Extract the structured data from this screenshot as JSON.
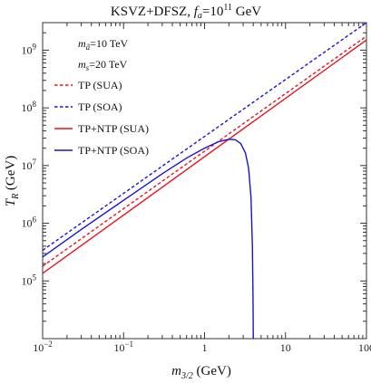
{
  "chart_data": {
    "type": "line",
    "title": "KSVZ+DFSZ, f_a=10^11 GeV",
    "title_parts": {
      "main": "KSVZ+DFSZ, ",
      "fa": "f",
      "fa_sub": "a",
      "eq": "=10",
      "exp": "11",
      "unit": " GeV"
    },
    "xlabel": {
      "m": "m",
      "sub": "3/2",
      "unit": " (GeV)"
    },
    "ylabel": {
      "t": "T",
      "sub": "R",
      "unit": " (GeV)"
    },
    "xscale": "log",
    "yscale": "log",
    "xlim": [
      0.01,
      100
    ],
    "ylim": [
      10000,
      3000000000
    ],
    "x_ticks": [
      {
        "value": 0.01,
        "label": "10",
        "exp": "−2"
      },
      {
        "value": 0.1,
        "label": "10",
        "exp": "−1"
      },
      {
        "value": 1,
        "label": "1",
        "exp": ""
      },
      {
        "value": 10,
        "label": "10",
        "exp": ""
      },
      {
        "value": 100,
        "label": "100",
        "exp": ""
      }
    ],
    "y_ticks": [
      {
        "value": 100000,
        "label": "10",
        "exp": "5"
      },
      {
        "value": 1000000,
        "label": "10",
        "exp": "6"
      },
      {
        "value": 10000000,
        "label": "10",
        "exp": "7"
      },
      {
        "value": 100000000,
        "label": "10",
        "exp": "8"
      },
      {
        "value": 1000000000,
        "label": "10",
        "exp": "9"
      }
    ],
    "annotations": [
      {
        "id": "ma",
        "sym": "m",
        "sub": "ã",
        "text": "=10 TeV"
      },
      {
        "id": "ms",
        "sym": "m",
        "sub": "s",
        "text": "=20 TeV"
      }
    ],
    "legend_position": "top-left",
    "series": [
      {
        "name": "TP (SUA)",
        "color": "#e8141e",
        "dash": true,
        "x": [
          0.01,
          100
        ],
        "y": [
          180000,
          1750000000
        ]
      },
      {
        "name": "TP (SOA)",
        "color": "#1a12d6",
        "dash": true,
        "x": [
          0.01,
          100
        ],
        "y": [
          340000,
          3000000000
        ]
      },
      {
        "name": "TP+NTP (SUA)",
        "color": "#e8141e",
        "dash": false,
        "x": [
          0.01,
          100
        ],
        "y": [
          135000,
          1500000000
        ]
      },
      {
        "name": "TP+NTP (SOA)",
        "color": "#1a12d6",
        "dash": false,
        "x": [
          0.01,
          0.03,
          0.1,
          0.3,
          0.6,
          1.0,
          1.5,
          2.0,
          2.4,
          2.8,
          3.2,
          3.5,
          3.75,
          3.9,
          3.97,
          4.0
        ],
        "y": [
          260000,
          780000,
          2500000,
          7200000,
          13500000,
          20000000,
          26000000,
          28500000,
          28000000,
          24000000,
          16500000,
          9000000,
          2800000,
          400000,
          50000,
          10000
        ]
      }
    ]
  }
}
